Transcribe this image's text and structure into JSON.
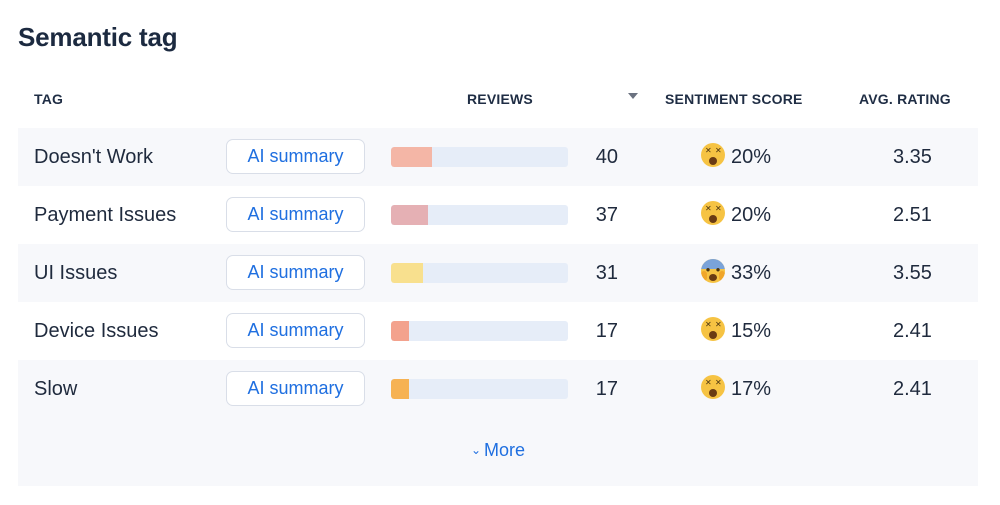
{
  "title": "Semantic tag",
  "headers": {
    "tag": "TAG",
    "reviews": "REVIEWS",
    "sentiment": "SENTIMENT SCORE",
    "avg_rating": "AVG. RATING"
  },
  "button_label": "AI summary",
  "rows": [
    {
      "tag": "Doesn't Work",
      "button": "AI summary",
      "reviews": "40",
      "bar_fraction": 0.23,
      "bar_color": "#f4b6a6",
      "emoji": "dizzy-face-icon",
      "sentiment": "20%",
      "avg": "3.35"
    },
    {
      "tag": "Payment Issues",
      "button": "AI summary",
      "reviews": "37",
      "bar_fraction": 0.21,
      "bar_color": "#e5b0b4",
      "emoji": "dizzy-face-icon",
      "sentiment": "20%",
      "avg": "2.51"
    },
    {
      "tag": "UI Issues",
      "button": "AI summary",
      "reviews": "31",
      "bar_fraction": 0.18,
      "bar_color": "#f8e08e",
      "emoji": "screaming-face-icon",
      "sentiment": "33%",
      "avg": "3.55"
    },
    {
      "tag": "Device Issues",
      "button": "AI summary",
      "reviews": "17",
      "bar_fraction": 0.1,
      "bar_color": "#f3a28d",
      "emoji": "dizzy-face-icon",
      "sentiment": "15%",
      "avg": "2.41"
    },
    {
      "tag": "Slow",
      "button": "AI summary",
      "reviews": "17",
      "bar_fraction": 0.1,
      "bar_color": "#f6b253",
      "emoji": "dizzy-face-icon",
      "sentiment": "17%",
      "avg": "2.41"
    }
  ],
  "more_label": "More",
  "colors": {
    "accent": "#1f6fe0",
    "bar_track": "#e6edf8",
    "table_bg": "#f7f8fb"
  }
}
